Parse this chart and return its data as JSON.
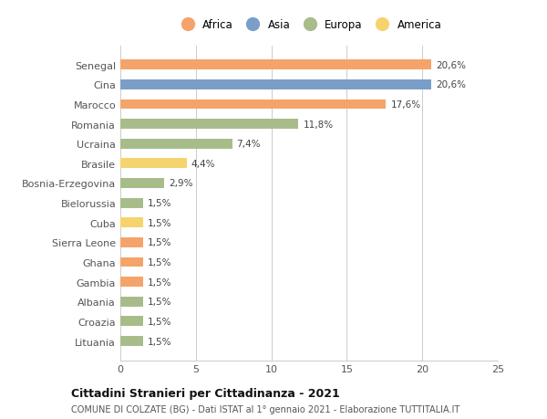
{
  "categories": [
    "Senegal",
    "Cina",
    "Marocco",
    "Romania",
    "Ucraina",
    "Brasile",
    "Bosnia-Erzegovina",
    "Bielorussia",
    "Cuba",
    "Sierra Leone",
    "Ghana",
    "Gambia",
    "Albania",
    "Croazia",
    "Lituania"
  ],
  "values": [
    20.6,
    20.6,
    17.6,
    11.8,
    7.4,
    4.4,
    2.9,
    1.5,
    1.5,
    1.5,
    1.5,
    1.5,
    1.5,
    1.5,
    1.5
  ],
  "labels": [
    "20,6%",
    "20,6%",
    "17,6%",
    "11,8%",
    "7,4%",
    "4,4%",
    "2,9%",
    "1,5%",
    "1,5%",
    "1,5%",
    "1,5%",
    "1,5%",
    "1,5%",
    "1,5%",
    "1,5%"
  ],
  "continents": [
    "Africa",
    "Asia",
    "Africa",
    "Europa",
    "Europa",
    "America",
    "Europa",
    "Europa",
    "America",
    "Africa",
    "Africa",
    "Africa",
    "Europa",
    "Europa",
    "Europa"
  ],
  "continent_colors": {
    "Africa": "#F4A46A",
    "Asia": "#7B9EC9",
    "Europa": "#A8BC8A",
    "America": "#F5D46E"
  },
  "legend_order": [
    "Africa",
    "Asia",
    "Europa",
    "America"
  ],
  "legend_colors": [
    "#F4A46A",
    "#7B9EC9",
    "#A8BC8A",
    "#F5D46E"
  ],
  "title": "Cittadini Stranieri per Cittadinanza - 2021",
  "subtitle": "COMUNE DI COLZATE (BG) - Dati ISTAT al 1° gennaio 2021 - Elaborazione TUTTITALIA.IT",
  "xlim": [
    0,
    25
  ],
  "xticks": [
    0,
    5,
    10,
    15,
    20,
    25
  ],
  "background_color": "#ffffff",
  "grid_color": "#cccccc"
}
